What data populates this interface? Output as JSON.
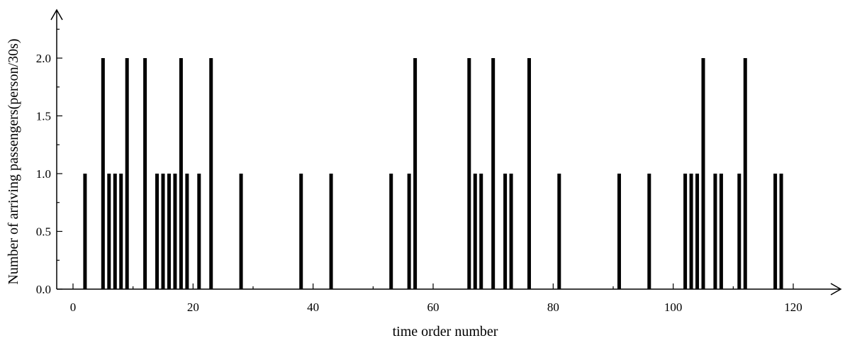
{
  "chart_data": {
    "type": "bar",
    "title": "",
    "xlabel": "time order number",
    "ylabel": "Number of arriving passengers(person/30s)",
    "xlim": [
      -3,
      129
    ],
    "ylim": [
      0,
      2.4
    ],
    "xticks": [
      0,
      20,
      40,
      60,
      80,
      100,
      120
    ],
    "yticks": [
      0.0,
      0.5,
      1.0,
      1.5,
      2.0
    ],
    "ytick_labels": [
      "0.0",
      "0.5",
      "1.0",
      "1.5",
      "2.0"
    ],
    "grid": false,
    "legend": "none",
    "bar_color": "#000000",
    "x": [
      2,
      5,
      6,
      7,
      8,
      9,
      12,
      14,
      15,
      16,
      17,
      18,
      19,
      21,
      23,
      28,
      38,
      43,
      53,
      56,
      57,
      66,
      67,
      68,
      70,
      72,
      73,
      76,
      81,
      91,
      96,
      102,
      103,
      104,
      105,
      107,
      108,
      111,
      112,
      117,
      118
    ],
    "values": [
      1,
      2,
      1,
      1,
      1,
      2,
      2,
      1,
      1,
      1,
      1,
      2,
      1,
      1,
      2,
      1,
      1,
      1,
      1,
      1,
      2,
      2,
      1,
      1,
      2,
      1,
      1,
      2,
      1,
      1,
      1,
      1,
      1,
      1,
      2,
      1,
      1,
      1,
      2,
      1,
      1
    ]
  }
}
